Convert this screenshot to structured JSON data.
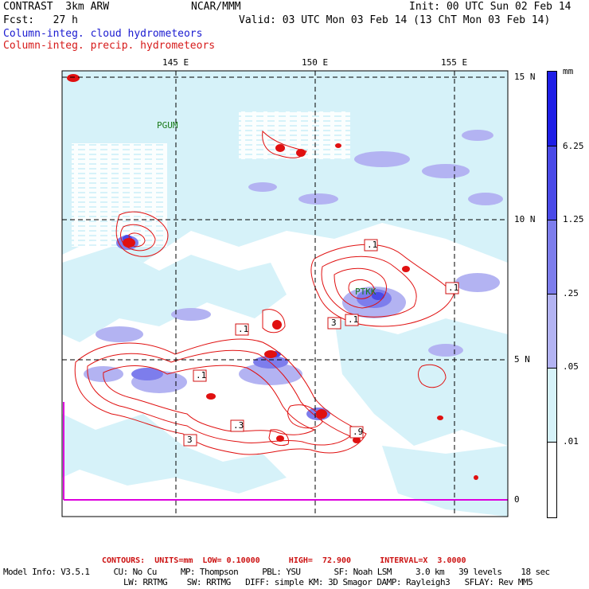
{
  "header": {
    "title": "CONTRAST  3km ARW",
    "center": "NCAR/MMM",
    "init": "Init: 00 UTC Sun 02 Feb 14",
    "fcst": "Fcst:   27 h",
    "valid": "Valid: 03 UTC Mon 03 Feb 14 (13 ChT Mon 03 Feb 14)",
    "line_blue": "Column-integ. cloud hydrometeors",
    "line_red": "Column-integ. precip. hydrometeors"
  },
  "axes": {
    "lon_labels": [
      "145 E",
      "150 E",
      "155 E"
    ],
    "lat_labels": [
      "15 N",
      "10 N",
      "5 N",
      "0"
    ]
  },
  "stations": [
    "PGUM",
    "PTKK"
  ],
  "contour_labels": [
    ".1",
    ".1",
    ".1",
    "3",
    ".1",
    ".1",
    ".3",
    "3",
    ".9"
  ],
  "legend": {
    "unit": "mm",
    "levels": [
      "6.25",
      "1.25",
      ".25",
      ".05",
      ".01"
    ],
    "colors": [
      "#1e1ee6",
      "#4a4ae8",
      "#7d7dec",
      "#b3b3f2",
      "#d6f2f9",
      "#ffffff"
    ]
  },
  "footer": {
    "contours": "CONTOURS:  UNITS=mm  LOW= 0.10000      HIGH=  72.900      INTERVAL=X  3.0000",
    "model_line1": "Model Info: V3.5.1     CU: No Cu     MP: Thompson     PBL: YSU       SF: Noah LSM     3.0 km   39 levels    18 sec",
    "model_line2": "LW: RRTMG    SW: RRTMG   DIFF: simple KM: 3D Smagor DAMP: Rayleigh3   SFLAY: Rev MM5"
  }
}
